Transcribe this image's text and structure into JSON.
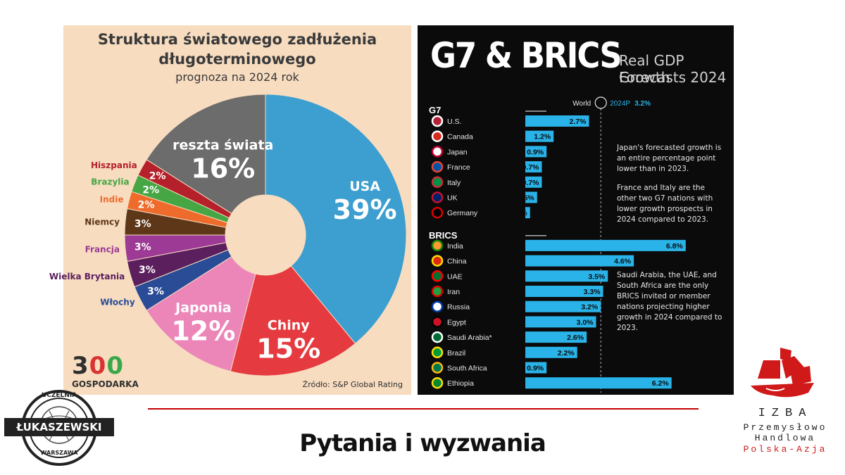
{
  "left_chart": {
    "title_line1": "Struktura światowego zadłużenia",
    "title_line2": "długoterminowego",
    "subtitle": "prognoza na 2024 rok",
    "source": "Źródło: S&P Global Rating",
    "logo_digits": [
      "3",
      "0",
      "0"
    ],
    "logo_sub": "GOSPODARKA"
  },
  "right_chart": {
    "title": "G7 & BRICS",
    "subtitle_line1": "Real GDP Growth",
    "subtitle_line2": "Forecasts 2024",
    "world_label": "World",
    "world_value_label": "2024P",
    "world_value": "3.2%",
    "group_g7": "G7",
    "group_brics": "BRICS",
    "note_1": "Japan's forecasted growth is an entire percentage point lower than in 2023.",
    "note_2": "France and Italy are the other two G7 nations with lower growth prospects in 2024 compared to 2023.",
    "note_3": "Saudi Arabia, the UAE, and South Africa are the only BRICS invited or member nations projecting higher growth in 2024 compared to 2023."
  },
  "chart_data": [
    {
      "type": "pie",
      "title": "Struktura światowego zadłużenia długoterminowego",
      "subtitle": "prognoza na 2024 rok",
      "categories": [
        "USA",
        "Chiny",
        "Japonia",
        "Włochy",
        "Wielka Brytania",
        "Francja",
        "Niemcy",
        "Indie",
        "Brazylia",
        "Hiszpania",
        "reszta świata"
      ],
      "values": [
        39,
        15,
        12,
        3,
        3,
        3,
        3,
        2,
        2,
        2,
        16
      ],
      "labels": [
        "39%",
        "15%",
        "12%",
        "3%",
        "3%",
        "3%",
        "3%",
        "2%",
        "2%",
        "2%",
        "16%"
      ],
      "colors": [
        "#3d9fcf",
        "#e53a3f",
        "#ec86b9",
        "#2a4c97",
        "#5b1f5e",
        "#9c3a95",
        "#5e3618",
        "#ee6b2c",
        "#46a643",
        "#b5202a",
        "#6c6c6c"
      ],
      "donut": true
    },
    {
      "type": "bar",
      "orientation": "horizontal",
      "title": "G7 & BRICS",
      "subtitle": "Real GDP Growth Forecasts 2024",
      "reference": {
        "label": "World 2024P",
        "value": 3.2
      },
      "groups": [
        {
          "name": "G7",
          "categories": [
            "U.S.",
            "Canada",
            "Japan",
            "France",
            "Italy",
            "UK",
            "Germany"
          ],
          "values": [
            2.7,
            1.2,
            0.9,
            0.7,
            0.7,
            0.5,
            0.2
          ]
        },
        {
          "name": "BRICS",
          "categories": [
            "India",
            "China",
            "UAE",
            "Iran",
            "Russia",
            "Egypt",
            "Saudi Arabia*",
            "Brazil",
            "South Africa",
            "Ethiopia"
          ],
          "values": [
            6.8,
            4.6,
            3.5,
            3.3,
            3.2,
            3.0,
            2.6,
            2.2,
            0.9,
            6.2
          ]
        }
      ],
      "bar_color": "#29b3e8"
    }
  ],
  "footer": {
    "title": "Pytania i wyzwania"
  },
  "badge": {
    "top_text": "UCZELNIA",
    "name": "ŁUKASZEWSKI",
    "city": "WARSZAWA"
  },
  "izba": {
    "line1": "IZBA",
    "line2": "Przemysłowo",
    "line3": "Handlowa",
    "line4": "Polska-Azja"
  }
}
